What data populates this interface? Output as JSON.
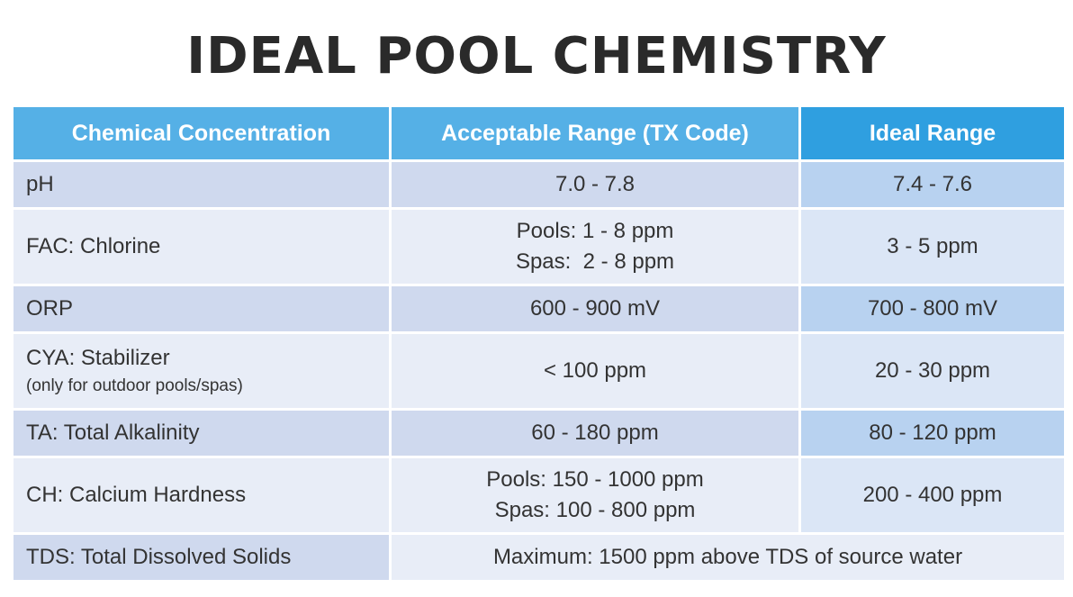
{
  "title": "IDEAL POOL CHEMISTRY",
  "columns": [
    "Chemical Concentration",
    "Acceptable Range (TX Code)",
    "Ideal Range"
  ],
  "rows": [
    {
      "label": "pH",
      "acceptable": [
        "7.0 - 7.8"
      ],
      "ideal": "7.4 - 7.6"
    },
    {
      "label": "FAC: Chlorine",
      "acceptable": [
        "Pools: 1 - 8 ppm",
        "Spas:  2 - 8 ppm"
      ],
      "ideal": "3 - 5 ppm"
    },
    {
      "label": "ORP",
      "acceptable": [
        "600 - 900 mV"
      ],
      "ideal": "700 - 800 mV"
    },
    {
      "label": "CYA: Stabilizer",
      "sublabel": "(only for outdoor pools/spas)",
      "acceptable": [
        "< 100 ppm"
      ],
      "ideal": "20 - 30 ppm"
    },
    {
      "label": "TA: Total Alkalinity",
      "acceptable": [
        "60 - 180 ppm"
      ],
      "ideal": "80 - 120 ppm"
    },
    {
      "label": "CH: Calcium Hardness",
      "acceptable": [
        "Pools: 150 - 1000 ppm",
        "Spas: 100 - 800 ppm"
      ],
      "ideal": "200 - 400 ppm"
    },
    {
      "label": "TDS: Total Dissolved Solids",
      "merged": "Maximum: 1500 ppm above TDS of source water"
    }
  ]
}
